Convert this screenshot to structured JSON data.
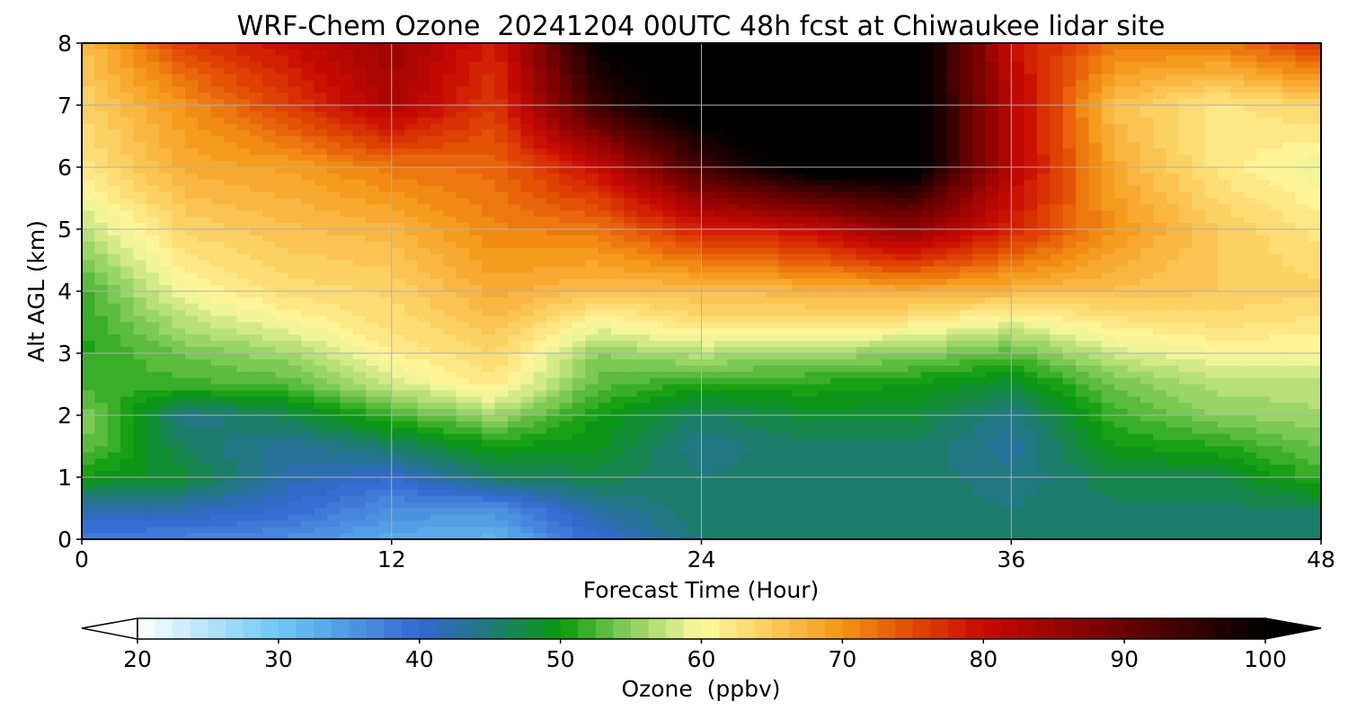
{
  "chart_data": {
    "type": "heatmap",
    "title": "WRF-Chem Ozone  20241204 00UTC 48h fcst at Chiwaukee lidar site",
    "xlabel": "Forecast Time (Hour)",
    "ylabel": "Alt AGL (km)",
    "xlim": [
      0,
      48
    ],
    "ylim": [
      0,
      8
    ],
    "x_ticks": [
      "0",
      "12",
      "24",
      "36",
      "48"
    ],
    "y_ticks": [
      "0",
      "1",
      "2",
      "3",
      "4",
      "5",
      "6",
      "7",
      "8"
    ],
    "grid": true,
    "colorbar": {
      "label": "Ozone  (ppbv)",
      "min": 20,
      "max": 100,
      "ticks": [
        "20",
        "30",
        "40",
        "50",
        "60",
        "70",
        "80",
        "90",
        "100"
      ],
      "extend": "both",
      "stops": [
        {
          "v": 20,
          "c": "#ffffff"
        },
        {
          "v": 30,
          "c": "#6cc8f4"
        },
        {
          "v": 40,
          "c": "#3468d2"
        },
        {
          "v": 45,
          "c": "#1f7a78"
        },
        {
          "v": 50,
          "c": "#099a09"
        },
        {
          "v": 55,
          "c": "#8cd060"
        },
        {
          "v": 60,
          "c": "#fffaa0"
        },
        {
          "v": 65,
          "c": "#fccb5a"
        },
        {
          "v": 70,
          "c": "#f49516"
        },
        {
          "v": 75,
          "c": "#e24804"
        },
        {
          "v": 80,
          "c": "#c80a02"
        },
        {
          "v": 90,
          "c": "#6a0000"
        },
        {
          "v": 100,
          "c": "#000000"
        }
      ]
    },
    "x_hours": [
      0,
      4,
      8,
      12,
      16,
      20,
      24,
      28,
      32,
      36,
      40,
      44,
      48
    ],
    "y_km": [
      0,
      0.5,
      1,
      1.5,
      2,
      2.5,
      3,
      3.5,
      4,
      5,
      6,
      7,
      8
    ],
    "ozone_ppbv": [
      [
        38,
        37,
        36,
        33,
        32,
        40,
        45,
        46,
        46,
        45,
        45,
        45,
        45
      ],
      [
        42,
        42,
        40,
        36,
        36,
        43,
        46,
        46,
        46,
        45,
        46,
        46,
        46
      ],
      [
        50,
        48,
        42,
        40,
        46,
        47,
        45,
        46,
        46,
        44,
        47,
        47,
        52
      ],
      [
        54,
        46,
        43,
        46,
        50,
        49,
        44,
        46,
        46,
        43,
        50,
        51,
        54
      ],
      [
        55,
        44,
        47,
        52,
        56,
        50,
        46,
        48,
        48,
        44,
        52,
        55,
        56
      ],
      [
        52,
        52,
        53,
        58,
        62,
        53,
        51,
        51,
        50,
        48,
        54,
        57,
        57
      ],
      [
        51,
        54,
        56,
        61,
        64,
        55,
        57,
        56,
        55,
        53,
        58,
        60,
        60
      ],
      [
        51,
        57,
        60,
        63,
        66,
        60,
        63,
        63,
        62,
        59,
        62,
        63,
        62
      ],
      [
        52,
        60,
        63,
        64,
        68,
        66,
        66,
        67,
        68,
        67,
        66,
        65,
        64
      ],
      [
        57,
        64,
        66,
        67,
        71,
        72,
        78,
        80,
        86,
        78,
        70,
        65,
        62
      ],
      [
        62,
        68,
        69,
        72,
        73,
        80,
        94,
        102,
        103,
        82,
        68,
        62,
        59
      ],
      [
        64,
        70,
        76,
        83,
        76,
        95,
        103,
        104,
        103,
        82,
        66,
        62,
        64
      ],
      [
        66,
        76,
        80,
        85,
        78,
        100,
        104,
        104,
        104,
        80,
        72,
        72,
        77
      ]
    ]
  }
}
